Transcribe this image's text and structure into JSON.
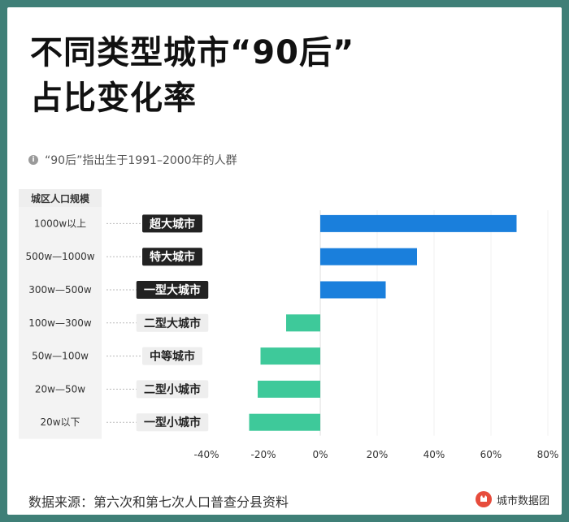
{
  "title_line1": "不同类型城市“90后”",
  "title_line2": "占比变化率",
  "note": "“90后”指出生于1991–2000年的人群",
  "source": "数据来源：第六次和第七次人口普查分县资料",
  "logo_text": "城市数据团",
  "colors": {
    "increase": "#1a7fdc",
    "decrease": "#3ec99a",
    "label_dark_bg": "#222222",
    "label_light_bg": "#eeeeee",
    "row_label_bg": "#eeeeee"
  },
  "chart_data": {
    "type": "bar",
    "orientation": "horizontal",
    "row_header": "城区人口规模",
    "sizes": [
      "1000w以上",
      "500w—1000w",
      "300w—500w",
      "100w—300w",
      "50w—100w",
      "20w—50w",
      "20w以下"
    ],
    "categories": [
      "超大城市",
      "特大城市",
      "一型大城市",
      "二型大城市",
      "中等城市",
      "二型小城市",
      "一型小城市"
    ],
    "values": [
      69,
      34,
      23,
      -12,
      -21,
      -22,
      -25
    ],
    "xlim": [
      -40,
      80
    ],
    "xticks": [
      -40,
      -20,
      0,
      20,
      40,
      60,
      80
    ],
    "xtick_labels": [
      "-40%",
      "-20%",
      "0%",
      "20%",
      "40%",
      "60%",
      "80%"
    ],
    "grid": "vertical"
  }
}
